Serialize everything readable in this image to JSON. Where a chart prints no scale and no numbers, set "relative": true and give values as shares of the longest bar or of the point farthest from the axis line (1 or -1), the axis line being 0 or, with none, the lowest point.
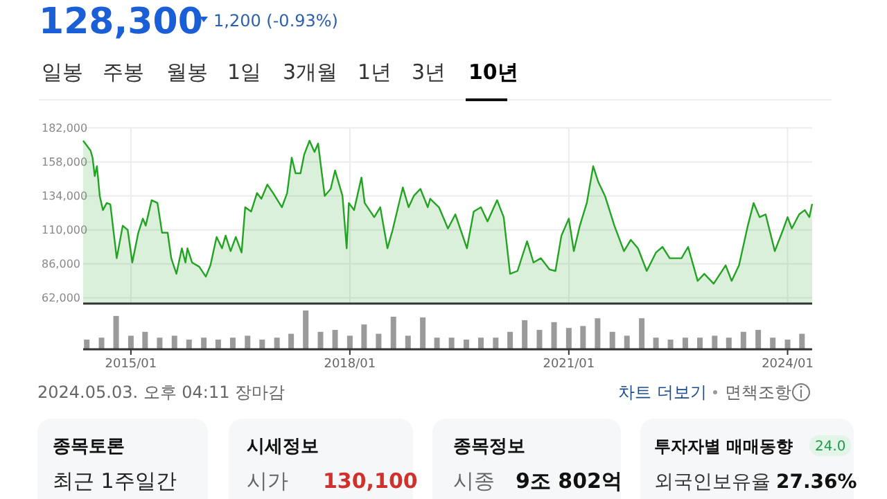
{
  "chart_data": [
    {
      "type": "area",
      "title": "128,300",
      "subtitle": "1,200 (-0.93%)",
      "color": "#22a322",
      "annotations": [
        "일봉",
        "주봉",
        "월봉",
        "1일",
        "3개월",
        "1년",
        "3년",
        "10년",
        "2024.05.03. 오후 04:11 장마감",
        "차트 더보기",
        "면책조항",
        "종목토론",
        "최근 1주일간",
        "시세정보",
        "시가",
        "130,100",
        "종목정보",
        "시종",
        "9조 802억",
        "투자자별 매매동향",
        "24.0",
        "외국인보유율",
        "27.36%"
      ],
      "x": [
        "2014-05-07",
        "2014-06-13",
        "2014-06-23",
        "2014-07-04",
        "2014-07-15",
        "2014-07-29",
        "2014-08-14",
        "2014-09-02",
        "2014-09-20",
        "2014-10-22",
        "2014-11-21",
        "2014-12-16",
        "2015-01-08",
        "2015-02-07",
        "2015-03-02",
        "2015-03-16",
        "2015-04-15",
        "2015-05-14",
        "2015-06-06",
        "2015-07-04",
        "2015-07-22",
        "2015-08-17",
        "2015-09-13",
        "2015-10-01",
        "2015-10-11",
        "2015-11-03",
        "2015-12-09",
        "2016-01-11",
        "2016-02-03",
        "2016-03-05",
        "2016-04-01",
        "2016-04-19",
        "2016-05-14",
        "2016-06-09",
        "2016-07-08",
        "2016-07-26",
        "2016-08-25",
        "2016-09-23",
        "2016-10-15",
        "2016-11-14",
        "2016-12-13",
        "2017-01-26",
        "2017-02-21",
        "2017-03-16",
        "2017-04-04",
        "2017-04-29",
        "2017-05-17",
        "2017-06-13",
        "2017-07-08",
        "2017-07-26",
        "2017-08-28",
        "2017-09-27",
        "2017-10-19",
        "2017-11-25",
        "2017-12-16",
        "2017-12-27",
        "2018-01-22",
        "2018-02-28",
        "2018-03-16",
        "2018-05-03",
        "2018-06-02",
        "2018-07-08",
        "2018-08-03",
        "2018-09-23",
        "2018-10-22",
        "2018-11-17",
        "2018-12-20",
        "2019-01-26",
        "2019-02-07",
        "2019-03-23",
        "2019-05-07",
        "2019-06-13",
        "2019-08-10",
        "2019-09-13",
        "2019-10-19",
        "2019-11-21",
        "2020-01-08",
        "2020-02-10",
        "2020-03-13",
        "2020-04-19",
        "2020-06-06",
        "2020-07-08",
        "2020-08-14",
        "2020-09-27",
        "2020-10-26",
        "2020-11-25",
        "2021-01-01",
        "2021-01-26",
        "2021-02-25",
        "2021-04-01",
        "2021-05-03",
        "2021-05-28",
        "2021-07-01",
        "2021-08-17",
        "2021-10-04",
        "2021-11-07",
        "2021-12-13",
        "2022-01-26",
        "2022-03-13",
        "2022-04-15",
        "2022-05-21",
        "2022-07-19",
        "2022-08-21",
        "2022-10-08",
        "2022-11-10",
        "2022-12-27",
        "2023-02-25",
        "2023-03-27",
        "2023-05-03",
        "2023-06-16",
        "2023-07-15",
        "2023-08-14",
        "2023-09-13",
        "2023-10-29",
        "2023-12-09",
        "2024-01-01",
        "2024-01-22",
        "2024-02-28",
        "2024-03-27",
        "2024-04-19",
        "2024-05-03"
      ],
      "values": [
        173000,
        166000,
        161000,
        148000,
        155000,
        134000,
        124000,
        129000,
        128000,
        90000,
        113000,
        110000,
        87000,
        108000,
        118000,
        113000,
        131000,
        129000,
        108000,
        108000,
        90000,
        79000,
        97000,
        87000,
        97000,
        87000,
        84000,
        77000,
        85000,
        105000,
        97000,
        106000,
        95000,
        105000,
        94000,
        126000,
        123000,
        136000,
        132000,
        142000,
        136000,
        126000,
        136000,
        161000,
        150000,
        150000,
        163000,
        173000,
        165000,
        171000,
        134000,
        139000,
        152000,
        134000,
        97000,
        129000,
        124000,
        147000,
        129000,
        119000,
        126000,
        97000,
        110000,
        140000,
        126000,
        134000,
        139000,
        126000,
        132000,
        126000,
        111000,
        121000,
        97000,
        123000,
        126000,
        116000,
        131000,
        119000,
        79000,
        81000,
        102000,
        87000,
        90000,
        82000,
        81000,
        106000,
        118000,
        95000,
        113000,
        129000,
        155000,
        144000,
        134000,
        113000,
        95000,
        103000,
        97000,
        81000,
        94000,
        98000,
        90000,
        90000,
        98000,
        74000,
        79000,
        72000,
        85000,
        74000,
        85000,
        113000,
        129000,
        119000,
        121000,
        95000,
        110000,
        119000,
        111000,
        121000,
        124000,
        119000,
        128300
      ],
      "xlim": [
        "2014-05-07",
        "2024-05-03"
      ],
      "ylim": [
        58000,
        182000
      ],
      "yticks": [
        {
          "value": 62000,
          "label": "62,000"
        },
        {
          "value": 86000,
          "label": "86,000"
        },
        {
          "value": 110000,
          "label": "110,000"
        },
        {
          "value": 134000,
          "label": "134,000"
        },
        {
          "value": 158000,
          "label": "158,000"
        },
        {
          "value": 182000,
          "label": "182,000"
        }
      ],
      "grid": true,
      "tick_labels": "y"
    },
    {
      "type": "bar",
      "relative": true,
      "color": "#9a9a9a",
      "tick_labels": "x",
      "x": [
        "2014-05-25",
        "2014-08-07",
        "2014-10-19",
        "2015-01-01",
        "2015-03-13",
        "2015-05-25",
        "2015-08-07",
        "2015-10-19",
        "2016-01-01",
        "2016-03-13",
        "2016-05-25",
        "2016-08-07",
        "2016-10-19",
        "2017-01-01",
        "2017-03-13",
        "2017-05-25",
        "2017-08-07",
        "2017-10-19",
        "2018-01-01",
        "2018-03-13",
        "2018-05-25",
        "2018-08-07",
        "2018-10-19",
        "2019-01-01",
        "2019-03-13",
        "2019-05-25",
        "2019-08-07",
        "2019-10-19",
        "2020-01-01",
        "2020-03-13",
        "2020-05-25",
        "2020-08-07",
        "2020-10-19",
        "2021-01-01",
        "2021-03-13",
        "2021-05-25",
        "2021-08-07",
        "2021-10-19",
        "2022-01-01",
        "2022-03-13",
        "2022-05-25",
        "2022-08-07",
        "2022-10-19",
        "2023-01-01",
        "2023-03-13",
        "2023-05-25",
        "2023-08-07",
        "2023-10-19",
        "2024-01-01",
        "2024-03-13"
      ],
      "values": [
        0.25,
        0.3,
        0.86,
        0.35,
        0.45,
        0.3,
        0.35,
        0.25,
        0.3,
        0.25,
        0.3,
        0.35,
        0.25,
        0.3,
        0.4,
        1.0,
        0.45,
        0.5,
        0.35,
        0.64,
        0.4,
        0.84,
        0.35,
        0.82,
        0.3,
        0.3,
        0.25,
        0.3,
        0.3,
        0.45,
        0.75,
        0.5,
        0.7,
        0.55,
        0.6,
        0.8,
        0.45,
        0.35,
        0.8,
        0.3,
        0.25,
        0.3,
        0.3,
        0.35,
        0.3,
        0.45,
        0.5,
        0.3,
        0.25,
        0.4
      ],
      "xlim": [
        "2014-05-07",
        "2024-05-03"
      ],
      "xticks": [
        {
          "value": "2015-01",
          "label": "2015/01"
        },
        {
          "value": "2018-01",
          "label": "2018/01"
        },
        {
          "value": "2021-01",
          "label": "2021/01"
        },
        {
          "value": "2024-01",
          "label": "2024/01"
        }
      ]
    }
  ]
}
